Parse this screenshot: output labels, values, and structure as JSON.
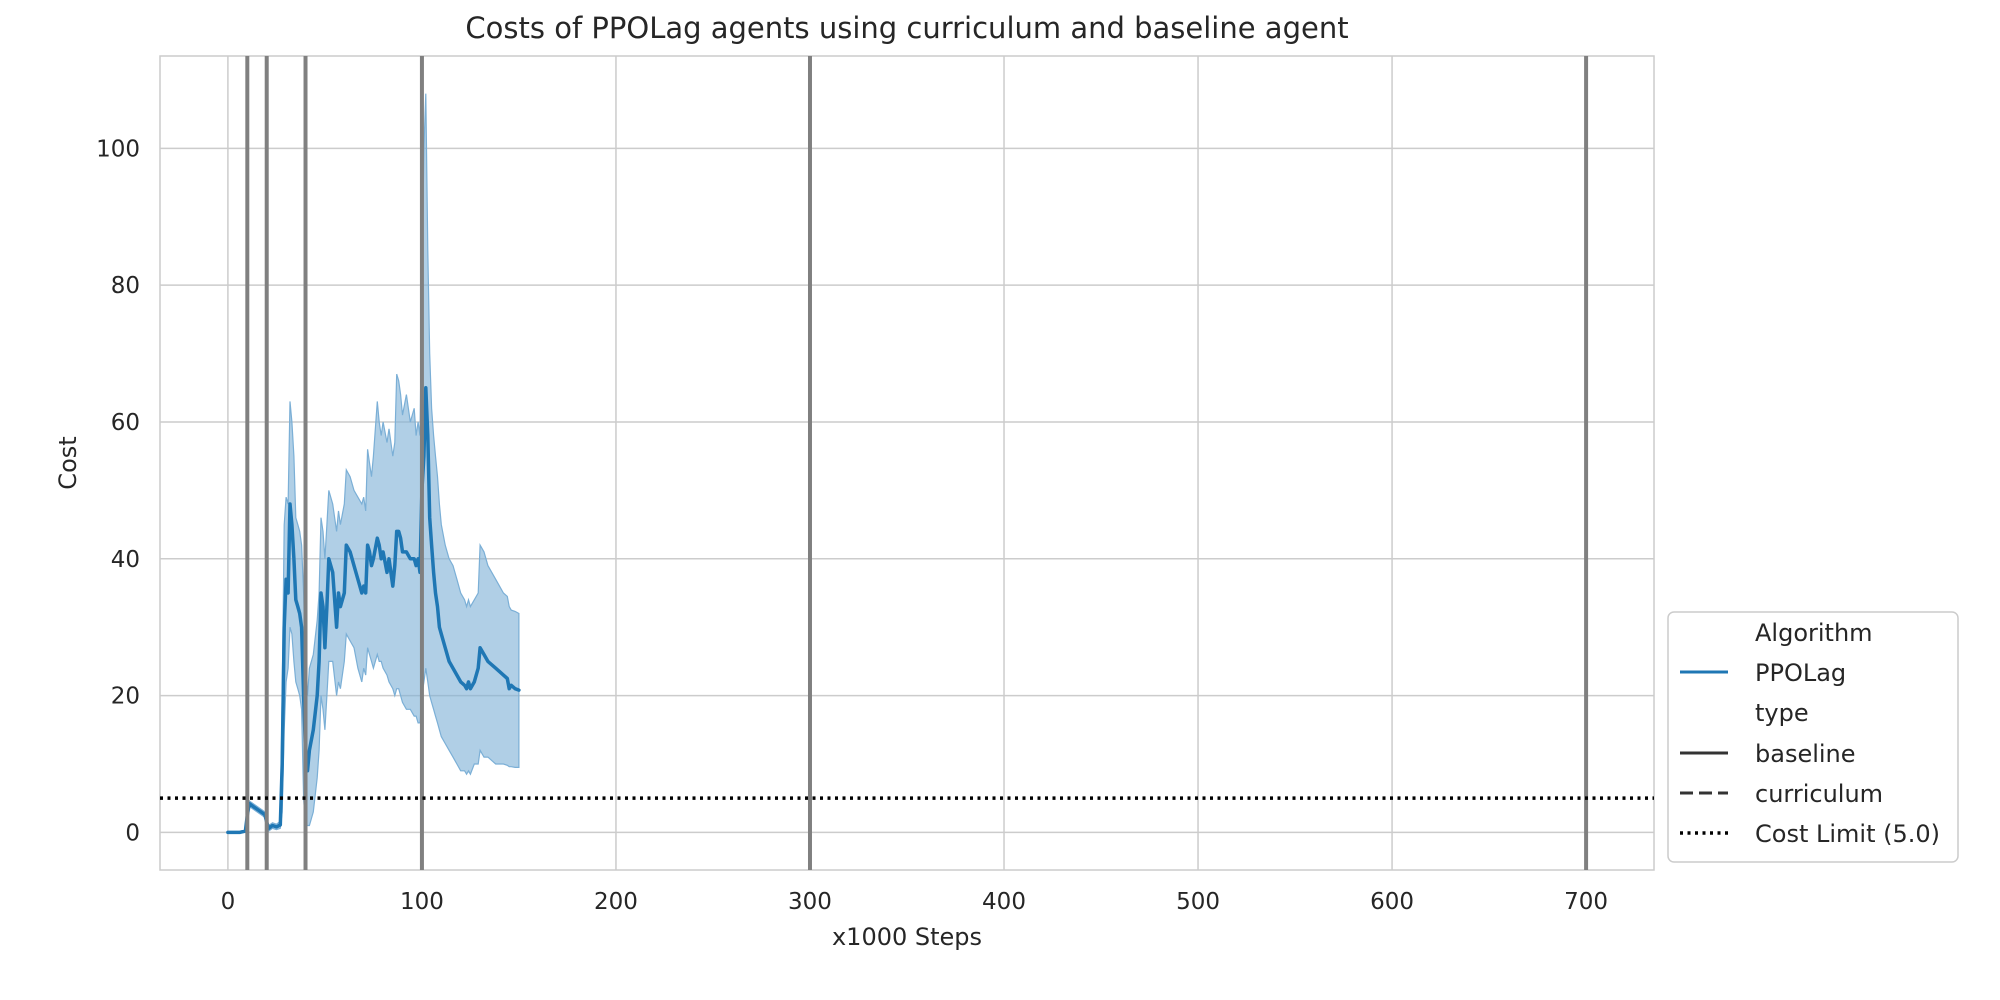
{
  "chart_data": {
    "type": "line",
    "title": "Costs of PPOLag agents using curriculum and baseline agent",
    "xlabel": "x1000 Steps",
    "ylabel": "Cost",
    "xlim": [
      -35,
      735
    ],
    "ylim": [
      -5.5,
      113.5
    ],
    "xticks": [
      0,
      100,
      200,
      300,
      400,
      500,
      600,
      700
    ],
    "yticks": [
      0,
      20,
      40,
      60,
      80,
      100
    ],
    "grid": true,
    "legend_position": "bottom-right",
    "vertical_lines": [
      10,
      20,
      40,
      100,
      300,
      700
    ],
    "cost_limit": 5.0,
    "legend": {
      "title_algorithm": "Algorithm",
      "algorithm_entry": "PPOLag",
      "title_type": "type",
      "type_entries": [
        "baseline",
        "curriculum"
      ],
      "cost_limit_label": "Cost Limit (5.0)"
    },
    "series": [
      {
        "name": "PPOLag",
        "style": "baseline",
        "color": "#1f77b4",
        "band_color": "#7bafd6",
        "points": [
          [
            0,
            0,
            0,
            0
          ],
          [
            3,
            0,
            0,
            0
          ],
          [
            6,
            0,
            0,
            0
          ],
          [
            9,
            0.2,
            0,
            0.4
          ],
          [
            10,
            2.5,
            2,
            3
          ],
          [
            11,
            4.2,
            3.8,
            4.6
          ],
          [
            13,
            3.8,
            3.4,
            4.2
          ],
          [
            16,
            3.2,
            2.8,
            3.6
          ],
          [
            19,
            2.6,
            2.2,
            3
          ],
          [
            20,
            1.5,
            1,
            2
          ],
          [
            21,
            0.6,
            0.2,
            1
          ],
          [
            23,
            1,
            0.6,
            1.4
          ],
          [
            25,
            0.8,
            0.4,
            1.2
          ],
          [
            27,
            1.1,
            0.6,
            1.6
          ],
          [
            28,
            10,
            3,
            20
          ],
          [
            29,
            30,
            15,
            45
          ],
          [
            30,
            37,
            22,
            49
          ],
          [
            31,
            35,
            24,
            48
          ],
          [
            32,
            48,
            30,
            63
          ],
          [
            33,
            45,
            29,
            60
          ],
          [
            34,
            40,
            25,
            55
          ],
          [
            35,
            34,
            22,
            46
          ],
          [
            36,
            33,
            21,
            45
          ],
          [
            37,
            32,
            20,
            44
          ],
          [
            38,
            30,
            18,
            42
          ],
          [
            39,
            20,
            5,
            35
          ],
          [
            40,
            12,
            1,
            25
          ],
          [
            41,
            9,
            1,
            20
          ],
          [
            42,
            12,
            1,
            24
          ],
          [
            44,
            15,
            3,
            26
          ],
          [
            46,
            20,
            8,
            31
          ],
          [
            47,
            25,
            12,
            35
          ],
          [
            48,
            35,
            20,
            46
          ],
          [
            49,
            33,
            18,
            44
          ],
          [
            50,
            27,
            15,
            40
          ],
          [
            51,
            33,
            20,
            45
          ],
          [
            52,
            40,
            25,
            50
          ],
          [
            54,
            38,
            25,
            48
          ],
          [
            56,
            30,
            20,
            44
          ],
          [
            57,
            35,
            22,
            47
          ],
          [
            58,
            33,
            21,
            45
          ],
          [
            60,
            35,
            25,
            48
          ],
          [
            61,
            42,
            29,
            53
          ],
          [
            63,
            41,
            28,
            52
          ],
          [
            65,
            39,
            27,
            50
          ],
          [
            67,
            37,
            24,
            49
          ],
          [
            69,
            35,
            22,
            48
          ],
          [
            70,
            36,
            24,
            49
          ],
          [
            71,
            35,
            23,
            47
          ],
          [
            72,
            42,
            27,
            56
          ],
          [
            73,
            41,
            26,
            54
          ],
          [
            74,
            39,
            25,
            52
          ],
          [
            75,
            40,
            24,
            55
          ],
          [
            77,
            43,
            26,
            63
          ],
          [
            78,
            42,
            25,
            60
          ],
          [
            79,
            40,
            25,
            58
          ],
          [
            80,
            41,
            24,
            60
          ],
          [
            82,
            38,
            23,
            57
          ],
          [
            83,
            40,
            22,
            59
          ],
          [
            85,
            36,
            21,
            55
          ],
          [
            86,
            39,
            20,
            57
          ],
          [
            87,
            44,
            21,
            67
          ],
          [
            88,
            44,
            21,
            66
          ],
          [
            89,
            43,
            20,
            64
          ],
          [
            90,
            41,
            19,
            61
          ],
          [
            92,
            41,
            18,
            64
          ],
          [
            94,
            40,
            18,
            60
          ],
          [
            96,
            40,
            17,
            62
          ],
          [
            97,
            39,
            17,
            58
          ],
          [
            98,
            40,
            16,
            60
          ],
          [
            99,
            38,
            16,
            58
          ],
          [
            100,
            50,
            20,
            80
          ],
          [
            101,
            55,
            22,
            100
          ],
          [
            102,
            65,
            24,
            108
          ],
          [
            103,
            58,
            22,
            85
          ],
          [
            104,
            46,
            20,
            70
          ],
          [
            105,
            42,
            19,
            62
          ],
          [
            106,
            38,
            18,
            58
          ],
          [
            107,
            35,
            17,
            55
          ],
          [
            108,
            33,
            16,
            52
          ],
          [
            109,
            30,
            15,
            48
          ],
          [
            110,
            29,
            14,
            45
          ],
          [
            112,
            27,
            13,
            42
          ],
          [
            114,
            25,
            12,
            40
          ],
          [
            116,
            24,
            11,
            39
          ],
          [
            118,
            23,
            10,
            37
          ],
          [
            120,
            22,
            9,
            35
          ],
          [
            122,
            21.5,
            9,
            34
          ],
          [
            123,
            21,
            8.5,
            33
          ],
          [
            124,
            22,
            9,
            34
          ],
          [
            125,
            21,
            8.5,
            33
          ],
          [
            127,
            22,
            10,
            34
          ],
          [
            129,
            24,
            10,
            35
          ],
          [
            130,
            27,
            12,
            42
          ],
          [
            132,
            26,
            11,
            41
          ],
          [
            134,
            25,
            11,
            39
          ],
          [
            136,
            24.5,
            10.5,
            38
          ],
          [
            138,
            24,
            10,
            37
          ],
          [
            140,
            23.5,
            10,
            36
          ],
          [
            142,
            23,
            10,
            35
          ],
          [
            144,
            22.5,
            9.8,
            34.5
          ],
          [
            145,
            21,
            9.6,
            33
          ],
          [
            146,
            21.5,
            9.6,
            32.5
          ],
          [
            148,
            21,
            9.5,
            32.3
          ],
          [
            150,
            20.8,
            9.5,
            32
          ]
        ]
      }
    ]
  }
}
